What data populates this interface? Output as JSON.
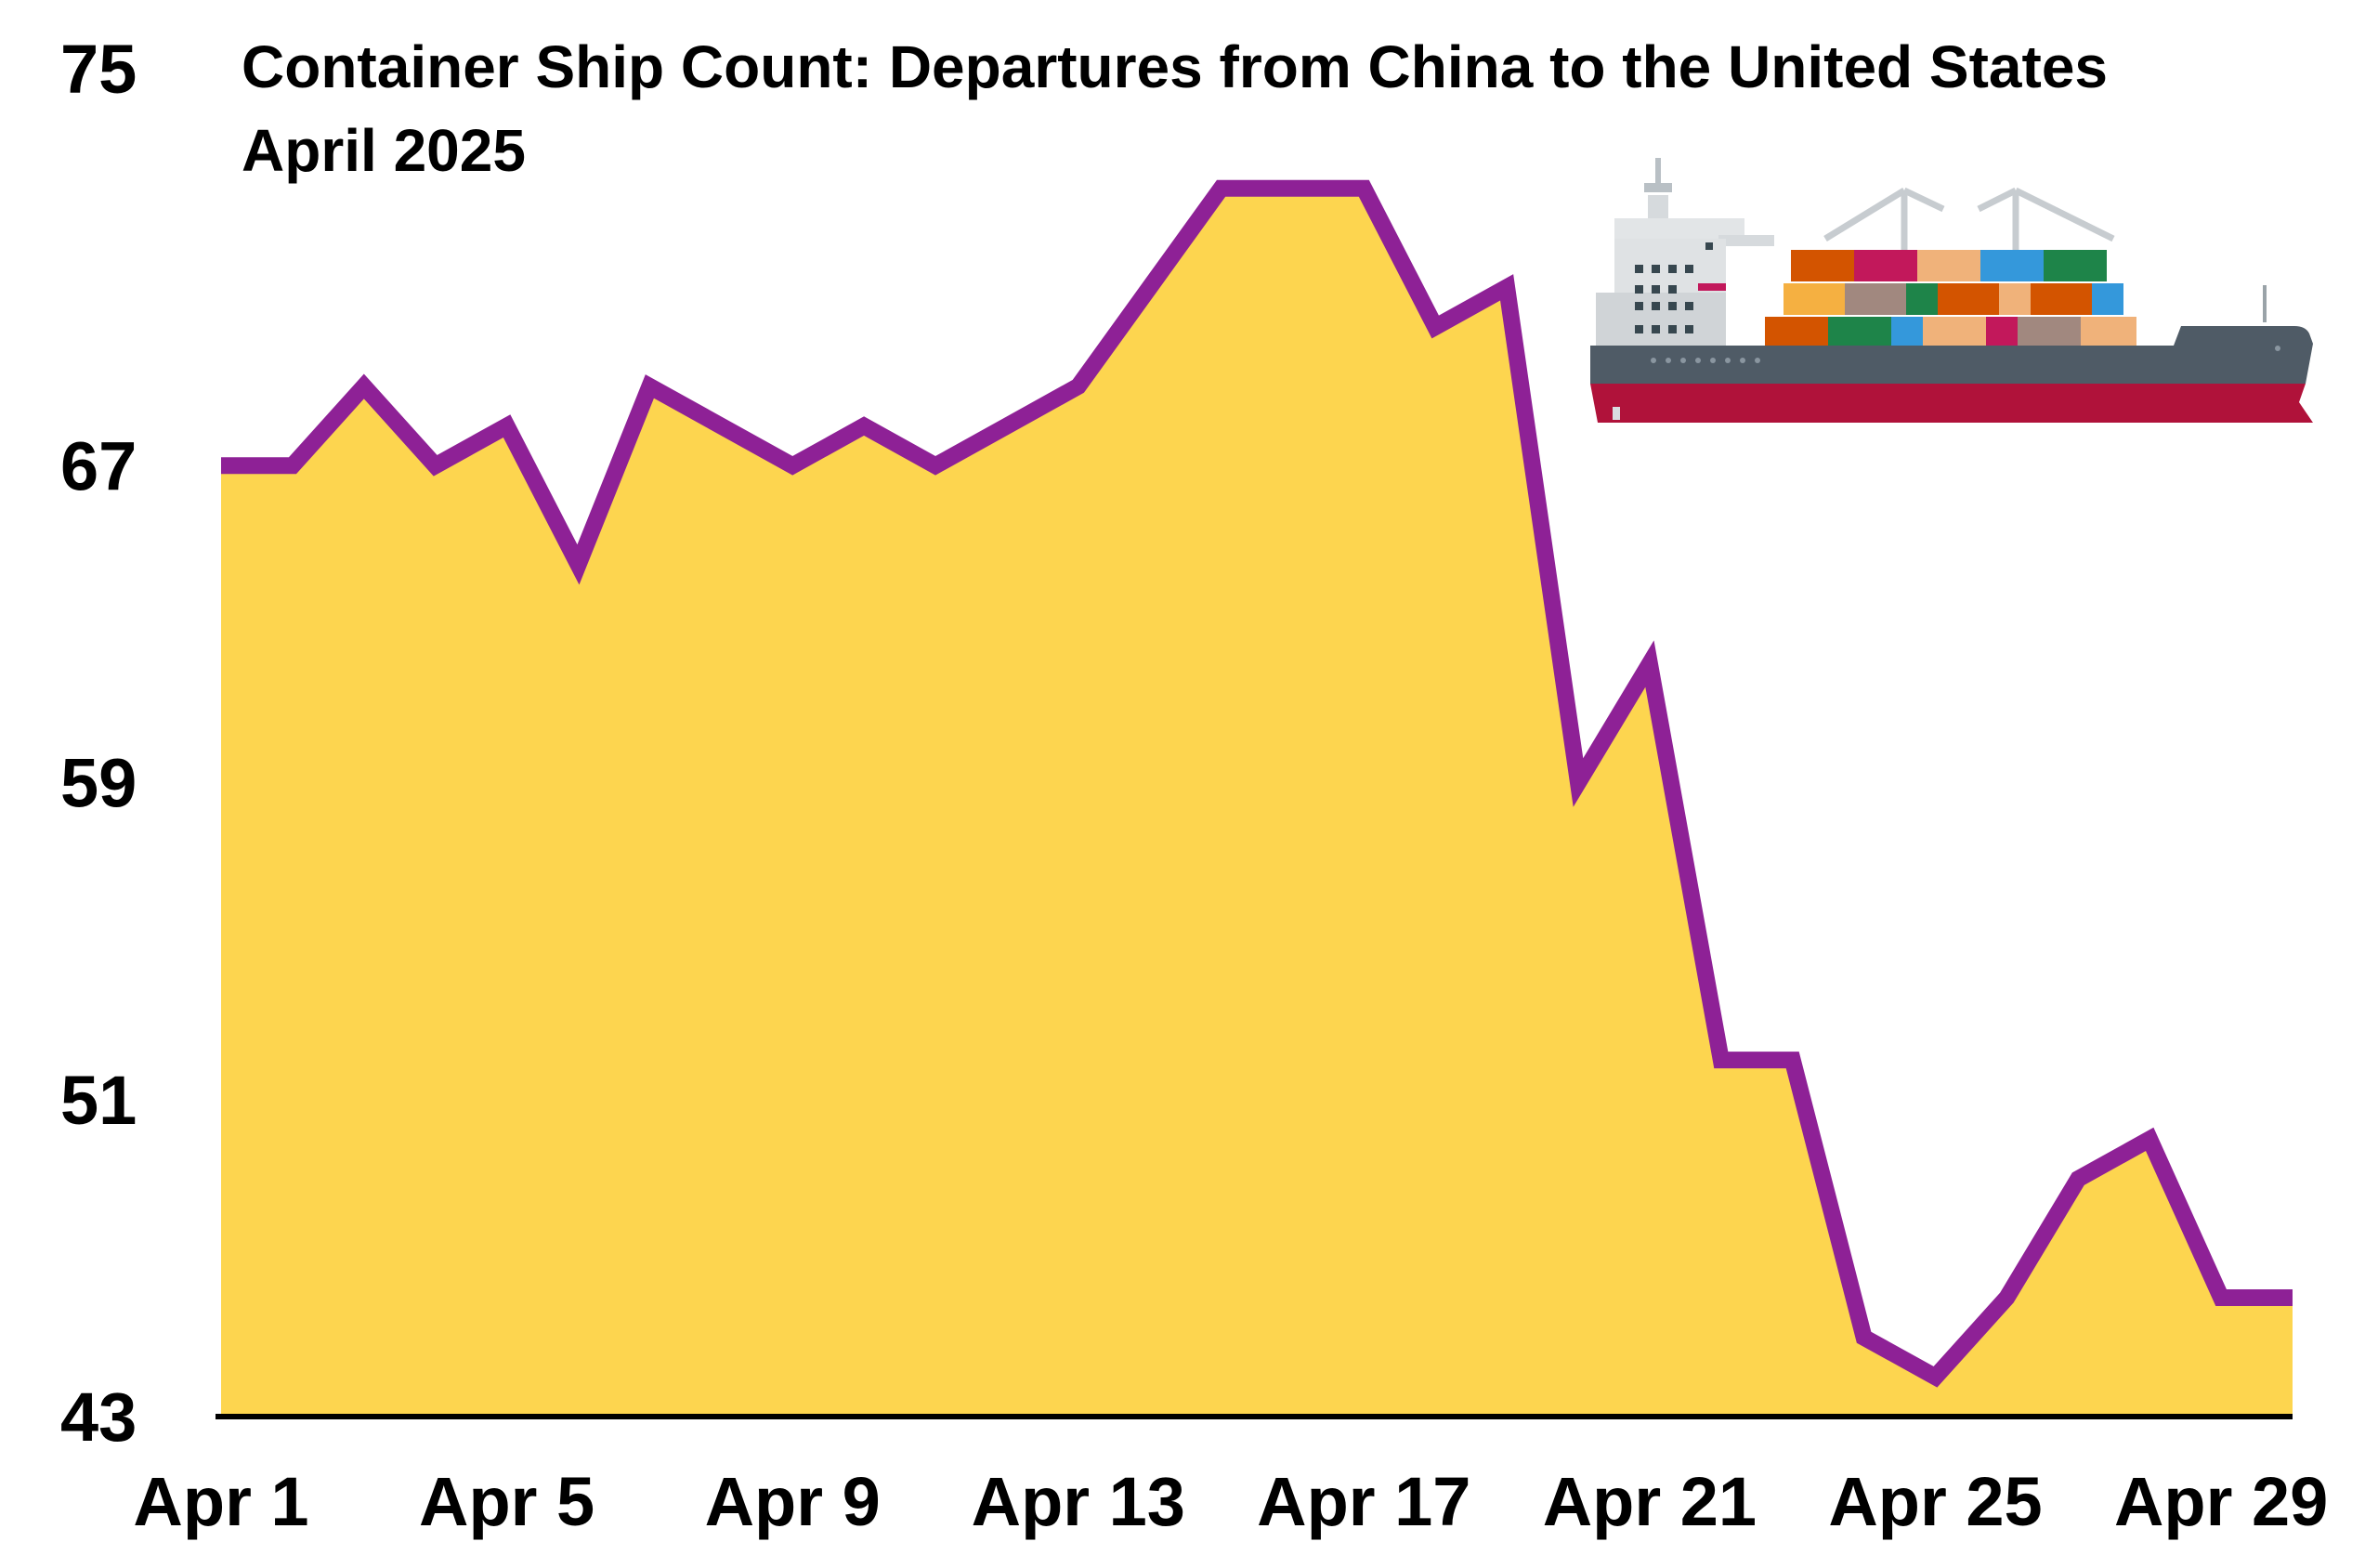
{
  "chart_data": {
    "type": "area",
    "title": "Container Ship Count: Departures from China to the United States",
    "subtitle": "April 2025",
    "xlabel": "",
    "ylabel": "",
    "x": [
      "Apr 1",
      "Apr 2",
      "Apr 3",
      "Apr 4",
      "Apr 5",
      "Apr 6",
      "Apr 7",
      "Apr 8",
      "Apr 9",
      "Apr 10",
      "Apr 11",
      "Apr 12",
      "Apr 13",
      "Apr 14",
      "Apr 15",
      "Apr 16",
      "Apr 17",
      "Apr 18",
      "Apr 19",
      "Apr 20",
      "Apr 21",
      "Apr 22",
      "Apr 23",
      "Apr 24",
      "Apr 25",
      "Apr 26",
      "Apr 27",
      "Apr 28",
      "Apr 29",
      "Apr 30"
    ],
    "values": [
      67,
      67,
      69,
      67,
      68,
      64.5,
      69,
      68,
      67,
      68,
      67,
      68,
      69,
      71.5,
      74,
      74,
      74,
      70.5,
      71.5,
      59,
      62,
      52,
      52,
      45,
      44,
      46,
      49,
      50,
      46,
      46
    ],
    "ylim": [
      43,
      75
    ],
    "yticks": [
      "43",
      "51",
      "59",
      "67",
      "75"
    ],
    "xticks": [
      "Apr 1",
      "Apr 5",
      "Apr 9",
      "Apr 13",
      "Apr 17",
      "Apr 21",
      "Apr 25",
      "Apr 29"
    ],
    "grid": false,
    "legend": "none",
    "colors": {
      "fill": "#FDD54F",
      "line": "#8E2196",
      "axis": "#000000"
    }
  },
  "illustration": {
    "icon": "container-ship-icon"
  }
}
